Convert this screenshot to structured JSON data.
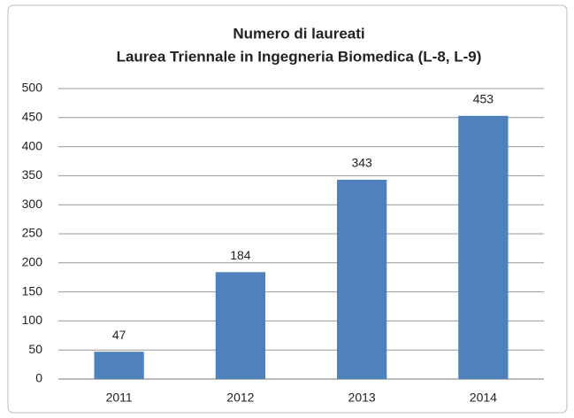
{
  "chart_data": {
    "type": "bar",
    "title": "Numero di laureati",
    "subtitle": "Laurea Triennale in Ingegneria Biomedica (L-8, L-9)",
    "categories": [
      "2011",
      "2012",
      "2013",
      "2014"
    ],
    "values": [
      47,
      184,
      343,
      453
    ],
    "color": "#4f81bd",
    "ylim": [
      0,
      500
    ],
    "yticks": [
      0,
      50,
      100,
      150,
      200,
      250,
      300,
      350,
      400,
      450,
      500
    ],
    "grid": true
  }
}
